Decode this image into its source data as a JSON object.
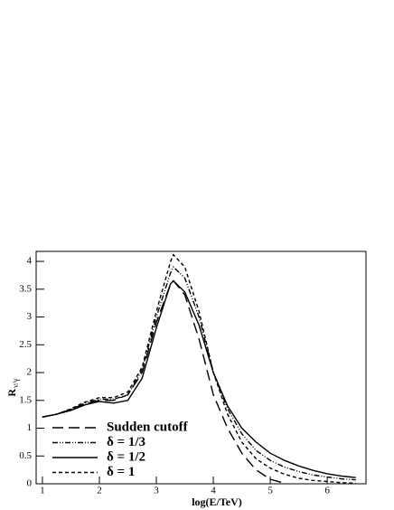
{
  "chart_data": {
    "type": "line",
    "xlabel": "log(E/TeV)",
    "ylabel": {
      "main": "R",
      "sub": "ν/γ"
    },
    "x": [
      1,
      1.25,
      1.5,
      1.75,
      2,
      2.25,
      2.5,
      2.75,
      3,
      3.25,
      3.3,
      3.5,
      3.75,
      4,
      4.25,
      4.5,
      4.75,
      5,
      5.25,
      5.5,
      5.75,
      6,
      6.25,
      6.5
    ],
    "series": [
      {
        "name": "Sudden cutoff",
        "color": "#000000",
        "dash": "12,6",
        "values": [
          1.2,
          1.25,
          1.34,
          1.44,
          1.5,
          1.5,
          1.6,
          2.0,
          2.9,
          3.6,
          3.65,
          3.4,
          2.6,
          1.6,
          1.0,
          0.55,
          0.25,
          0.08,
          0.01,
          null,
          null,
          null,
          null,
          null
        ]
      },
      {
        "name": "δ = 1/3",
        "color": "#000000",
        "dash": "6,2,1,2,1,2",
        "values": [
          1.2,
          1.25,
          1.34,
          1.45,
          1.52,
          1.52,
          1.6,
          2.05,
          3.0,
          3.8,
          3.9,
          3.7,
          3.0,
          2.0,
          1.35,
          0.9,
          0.6,
          0.42,
          0.3,
          0.22,
          0.16,
          0.12,
          0.09,
          0.07
        ]
      },
      {
        "name": "δ = 1/2",
        "color": "#000000",
        "dash": "",
        "values": [
          1.2,
          1.25,
          1.32,
          1.42,
          1.48,
          1.45,
          1.5,
          1.9,
          2.8,
          3.6,
          3.65,
          3.45,
          2.85,
          2.0,
          1.4,
          1.0,
          0.75,
          0.55,
          0.42,
          0.32,
          0.24,
          0.18,
          0.14,
          0.11
        ]
      },
      {
        "name": "δ = 1",
        "color": "#000000",
        "dash": "4,3",
        "values": [
          1.2,
          1.25,
          1.35,
          1.47,
          1.55,
          1.55,
          1.65,
          2.1,
          3.1,
          4.0,
          4.12,
          3.9,
          3.1,
          2.0,
          1.25,
          0.75,
          0.45,
          0.28,
          0.17,
          0.1,
          0.06,
          0.04,
          0.02,
          0.01
        ]
      }
    ],
    "xlim": [
      0.89,
      6.68
    ],
    "xticks": [
      1,
      2,
      3,
      4,
      5,
      6
    ],
    "ylim": [
      0,
      4.18
    ],
    "yticks": [
      0,
      0.5,
      1,
      1.5,
      2,
      2.5,
      3,
      3.5,
      4
    ],
    "legend": "lower left"
  }
}
